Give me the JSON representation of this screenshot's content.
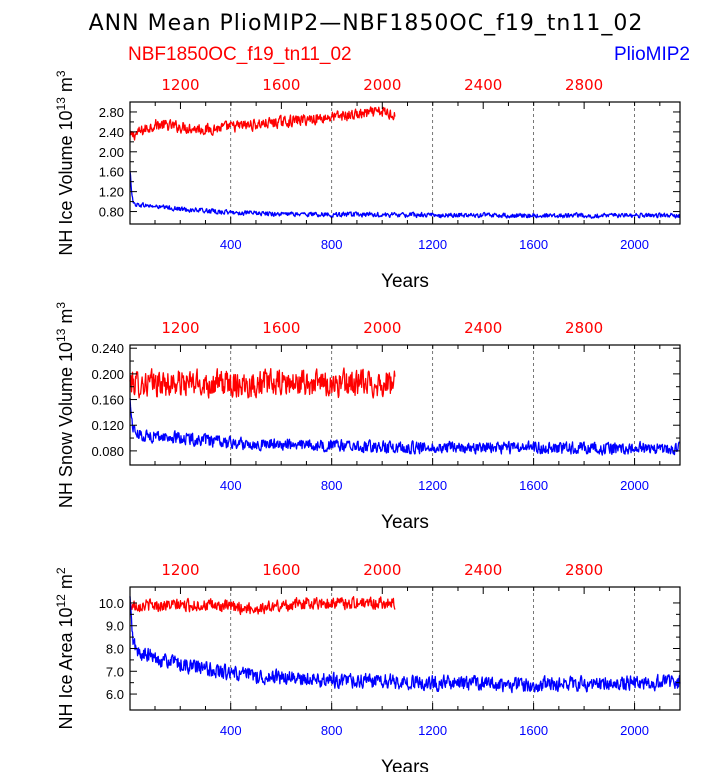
{
  "figure_title": "ANN Mean PlioMIP2—NBF1850OC_f19_tn11_02",
  "legend": {
    "red_label": "NBF1850OC_f19_tn11_02",
    "blue_label": "PlioMIP2"
  },
  "colors": {
    "red": "#ff0000",
    "blue": "#0000ff",
    "axis": "#000000"
  },
  "chart_data": [
    {
      "type": "line",
      "ylabel_main": "NH Ice Volume 10",
      "ylabel_sup": "13",
      "ylabel_unit": " m",
      "ylabel_unit_sup": "3",
      "xlabel": "Years",
      "ylim": [
        0.55,
        3.0
      ],
      "yticks": [
        "0.80",
        "1.20",
        "1.60",
        "2.00",
        "2.40",
        "2.80"
      ],
      "ytick_values": [
        0.8,
        1.2,
        1.6,
        2.0,
        2.4,
        2.8
      ],
      "bottom_xlim": [
        1,
        2180
      ],
      "bottom_xticks": [
        400,
        800,
        1200,
        1600,
        2000
      ],
      "top_xlim": [
        1000,
        3180
      ],
      "top_xticks": [
        1200,
        1600,
        2000,
        2400,
        2800
      ],
      "series": [
        {
          "name": "NBF1850OC_f19_tn11_02",
          "axis": "top",
          "x_start": 1000,
          "x_end": 2050,
          "points": [
            [
              1000,
              2.3
            ],
            [
              1100,
              2.55
            ],
            [
              1200,
              2.5
            ],
            [
              1300,
              2.45
            ],
            [
              1400,
              2.5
            ],
            [
              1500,
              2.55
            ],
            [
              1600,
              2.6
            ],
            [
              1700,
              2.65
            ],
            [
              1800,
              2.7
            ],
            [
              1900,
              2.75
            ],
            [
              2000,
              2.8
            ],
            [
              2050,
              2.75
            ]
          ],
          "noise": 0.12
        },
        {
          "name": "PlioMIP2",
          "axis": "bottom",
          "x_start": 1,
          "x_end": 2180,
          "points": [
            [
              1,
              1.6
            ],
            [
              8,
              1.2
            ],
            [
              15,
              0.95
            ],
            [
              100,
              0.9
            ],
            [
              200,
              0.85
            ],
            [
              400,
              0.78
            ],
            [
              600,
              0.75
            ],
            [
              800,
              0.74
            ],
            [
              1200,
              0.73
            ],
            [
              1600,
              0.72
            ],
            [
              2000,
              0.72
            ],
            [
              2180,
              0.72
            ]
          ],
          "noise": 0.05
        }
      ]
    },
    {
      "type": "line",
      "ylabel_main": "NH Snow Volume 10",
      "ylabel_sup": "13",
      "ylabel_unit": " m",
      "ylabel_unit_sup": "3",
      "xlabel": "Years",
      "ylim": [
        0.058,
        0.245
      ],
      "yticks": [
        "0.080",
        "0.120",
        "0.160",
        "0.200",
        "0.240"
      ],
      "ytick_values": [
        0.08,
        0.12,
        0.16,
        0.2,
        0.24
      ],
      "bottom_xlim": [
        1,
        2180
      ],
      "bottom_xticks": [
        400,
        800,
        1200,
        1600,
        2000
      ],
      "top_xlim": [
        1000,
        3180
      ],
      "top_xticks": [
        1200,
        1600,
        2000,
        2400,
        2800
      ],
      "series": [
        {
          "name": "NBF1850OC_f19_tn11_02",
          "axis": "top",
          "x_start": 1000,
          "x_end": 2050,
          "points": [
            [
              1000,
              0.185
            ],
            [
              1500,
              0.185
            ],
            [
              2050,
              0.185
            ]
          ],
          "noise": 0.022
        },
        {
          "name": "PlioMIP2",
          "axis": "bottom",
          "x_start": 1,
          "x_end": 2180,
          "points": [
            [
              1,
              0.16
            ],
            [
              10,
              0.12
            ],
            [
              30,
              0.105
            ],
            [
              200,
              0.1
            ],
            [
              400,
              0.092
            ],
            [
              800,
              0.088
            ],
            [
              1200,
              0.085
            ],
            [
              1600,
              0.085
            ],
            [
              2000,
              0.084
            ],
            [
              2180,
              0.084
            ]
          ],
          "noise": 0.01
        }
      ]
    },
    {
      "type": "line",
      "ylabel_main": "NH Ice Area 10",
      "ylabel_sup": "12",
      "ylabel_unit": " m",
      "ylabel_unit_sup": "2",
      "xlabel": "Years",
      "ylim": [
        5.3,
        10.7
      ],
      "yticks": [
        "6.0",
        "7.0",
        "8.0",
        "9.0",
        "10.0"
      ],
      "ytick_values": [
        6.0,
        7.0,
        8.0,
        9.0,
        10.0
      ],
      "bottom_xlim": [
        1,
        2180
      ],
      "bottom_xticks": [
        400,
        800,
        1200,
        1600,
        2000
      ],
      "top_xlim": [
        1000,
        3180
      ],
      "top_xticks": [
        1200,
        1600,
        2000,
        2400,
        2800
      ],
      "series": [
        {
          "name": "NBF1850OC_f19_tn11_02",
          "axis": "top",
          "x_start": 1000,
          "x_end": 2050,
          "points": [
            [
              1000,
              9.9
            ],
            [
              1300,
              9.9
            ],
            [
              1500,
              9.75
            ],
            [
              1700,
              10.0
            ],
            [
              2050,
              10.0
            ]
          ],
          "noise": 0.28
        },
        {
          "name": "PlioMIP2",
          "axis": "bottom",
          "x_start": 1,
          "x_end": 2180,
          "points": [
            [
              1,
              10.2
            ],
            [
              10,
              8.5
            ],
            [
              30,
              7.8
            ],
            [
              200,
              7.3
            ],
            [
              400,
              6.9
            ],
            [
              600,
              6.7
            ],
            [
              800,
              6.6
            ],
            [
              1200,
              6.5
            ],
            [
              1600,
              6.4
            ],
            [
              2000,
              6.5
            ],
            [
              2180,
              6.5
            ]
          ],
          "noise": 0.35
        }
      ]
    }
  ]
}
